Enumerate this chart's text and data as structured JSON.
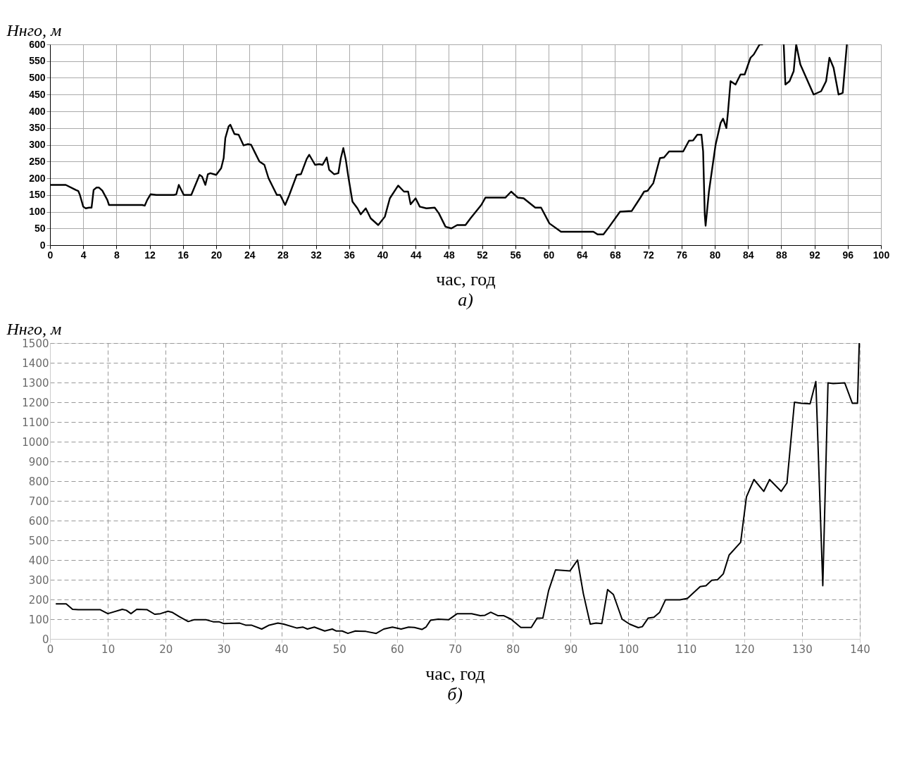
{
  "chart_data": [
    {
      "type": "line",
      "xlabel": "час, год",
      "ylabel": "Hнго, м",
      "annotations": [
        "а)"
      ],
      "grid": true,
      "xlim": [
        0,
        100
      ],
      "xticks": [
        0,
        4,
        8,
        12,
        16,
        20,
        24,
        28,
        32,
        36,
        40,
        44,
        48,
        52,
        56,
        60,
        64,
        68,
        72,
        76,
        80,
        84,
        88,
        92,
        96,
        100
      ],
      "ylim": [
        0,
        600
      ],
      "yticks": [
        0,
        50,
        100,
        150,
        200,
        250,
        300,
        350,
        400,
        450,
        500,
        550,
        600
      ],
      "x": [
        0,
        1.9,
        3.1,
        3.4,
        3.6,
        4,
        4.3,
        4.7,
        5.0,
        5.25,
        5.6,
        5.9,
        6.3,
        6.9,
        7.1,
        7.6,
        8.8,
        11.1,
        11.4,
        11.7,
        12.1,
        12.8,
        14.9,
        15.2,
        15.5,
        16.1,
        16.5,
        17,
        18,
        18.3,
        18.7,
        19.0,
        19.3,
        20,
        20.6,
        20.9,
        21.1,
        21.5,
        21.7,
        22.2,
        22.7,
        23.3,
        23.8,
        24.2,
        24.7,
        25.2,
        25.8,
        26.3,
        27.3,
        27.7,
        28.3,
        28.8,
        29.7,
        30.2,
        30.9,
        31.2,
        31.9,
        32.4,
        32.8,
        33.3,
        33.6,
        34.2,
        34.7,
        35,
        35.3,
        35.6,
        35.9,
        36.4,
        37,
        37.4,
        38,
        38.6,
        39.5,
        40.3,
        40.9,
        41.9,
        42.6,
        43.1,
        43.4,
        44,
        44.5,
        45.3,
        46.3,
        46.8,
        47.6,
        48.3,
        49,
        50.0,
        50.6,
        51.9,
        52.4,
        54.8,
        55.5,
        56.3,
        57,
        58.4,
        59.1,
        60.1,
        61.5,
        65.4,
        65.9,
        66.6,
        67.3,
        68.6,
        70,
        71.0,
        71.5,
        71.9,
        72.6,
        73.4,
        73.9,
        74.5,
        76.2,
        76.9,
        77.4,
        77.9,
        78.4,
        78.6,
        78.8,
        78.9,
        79.3,
        80.1,
        80.7,
        81,
        81.4,
        81.6,
        81.9,
        82.5,
        83.1,
        83.6,
        84.3,
        84.7,
        85.4,
        85.8,
        86.5,
        88.3,
        88.5,
        89.0,
        89.5,
        89.8,
        90.3,
        91.9,
        92.8,
        93.4,
        93.8,
        94.3,
        94.9,
        95.4,
        95.9
      ],
      "series": [
        {
          "color": "#000000",
          "values": [
            180,
            180,
            165,
            162,
            150,
            115,
            110,
            112,
            112,
            165,
            172,
            172,
            163,
            135,
            120,
            120,
            120,
            120,
            118,
            135,
            152,
            150,
            150,
            152,
            180,
            150,
            150,
            150,
            210,
            205,
            180,
            212,
            215,
            210,
            230,
            260,
            320,
            355,
            360,
            332,
            330,
            298,
            302,
            300,
            275,
            250,
            240,
            200,
            150,
            150,
            120,
            150,
            210,
            212,
            258,
            270,
            240,
            242,
            240,
            262,
            225,
            212,
            215,
            260,
            290,
            255,
            205,
            130,
            110,
            92,
            110,
            80,
            60,
            85,
            140,
            178,
            160,
            160,
            122,
            140,
            115,
            110,
            112,
            95,
            55,
            50,
            60,
            60,
            80,
            120,
            142,
            142,
            160,
            142,
            140,
            112,
            112,
            65,
            40,
            40,
            32,
            32,
            55,
            100,
            102,
            140,
            160,
            162,
            185,
            260,
            262,
            280,
            280,
            312,
            313,
            330,
            330,
            280,
            90,
            58,
            160,
            300,
            365,
            378,
            350,
            400,
            490,
            480,
            510,
            510,
            560,
            570,
            600,
            600,
            null,
            600,
            480,
            490,
            520,
            600,
            540,
            450,
            460,
            490,
            560,
            530,
            450,
            455,
            600
          ]
        }
      ]
    },
    {
      "type": "line",
      "xlabel": "час, год",
      "ylabel": "Hнго, м",
      "annotations": [
        "б)"
      ],
      "grid": true,
      "xlim": [
        0,
        140
      ],
      "xticks": [
        0,
        10,
        20,
        30,
        40,
        50,
        60,
        70,
        80,
        90,
        100,
        110,
        120,
        130,
        140
      ],
      "ylim": [
        0,
        1500
      ],
      "yticks": [
        0,
        100,
        200,
        300,
        400,
        500,
        600,
        700,
        800,
        900,
        1000,
        1100,
        1200,
        1300,
        1400,
        1500
      ],
      "x": [
        1,
        2.8,
        3.9,
        4.9,
        8.7,
        10,
        12.5,
        13.2,
        14,
        15,
        16.8,
        18.1,
        19.1,
        20.4,
        21.1,
        22.4,
        23.9,
        24.9,
        27,
        28.2,
        29.2,
        30,
        32.8,
        33.8,
        34.8,
        36.6,
        37.9,
        39.4,
        40.4,
        42.7,
        43.7,
        44.5,
        45.7,
        47.5,
        48.8,
        49.5,
        50.5,
        51.5,
        52.8,
        54.6,
        56.4,
        57.7,
        59.2,
        60.7,
        62,
        63,
        64.3,
        65,
        65.8,
        67.1,
        68.9,
        70.4,
        72.9,
        74.4,
        75.2,
        76.2,
        77.4,
        78.4,
        79.7,
        81.4,
        83.2,
        84.2,
        85.2,
        86.2,
        87.4,
        89.9,
        91.2,
        92.2,
        93.4,
        94.4,
        95.4,
        96.4,
        97.4,
        98.9,
        100.2,
        101.7,
        102.4,
        103.4,
        104.4,
        105.4,
        106.4,
        108.9,
        110.2,
        112.4,
        113.4,
        114.4,
        115.4,
        116.4,
        117.4,
        119.4,
        120.4,
        121.7,
        123.4,
        124.4,
        126.4,
        127.4,
        128.7,
        129.9,
        131.4,
        132.4,
        133.6,
        134.5,
        135.4,
        137.4,
        138.7,
        139.6,
        139.9
      ],
      "series": [
        {
          "color": "#000000",
          "values": [
            178,
            178,
            150,
            148,
            148,
            128,
            150,
            145,
            128,
            150,
            148,
            125,
            128,
            140,
            135,
            112,
            88,
            97,
            97,
            87,
            87,
            78,
            80,
            70,
            70,
            50,
            70,
            80,
            75,
            55,
            60,
            50,
            60,
            40,
            50,
            40,
            40,
            28,
            40,
            38,
            28,
            50,
            60,
            50,
            60,
            58,
            48,
            60,
            95,
            100,
            97,
            128,
            128,
            118,
            120,
            135,
            118,
            118,
            100,
            58,
            58,
            105,
            105,
            245,
            350,
            345,
            400,
            230,
            75,
            80,
            78,
            250,
            225,
            100,
            75,
            57,
            62,
            105,
            110,
            135,
            198,
            198,
            205,
            265,
            270,
            297,
            300,
            330,
            425,
            490,
            720,
            808,
            748,
            808,
            748,
            790,
            1200,
            1195,
            1192,
            1305,
            270,
            1298,
            1295,
            1298,
            1195,
            1195,
            1500
          ]
        }
      ]
    }
  ]
}
